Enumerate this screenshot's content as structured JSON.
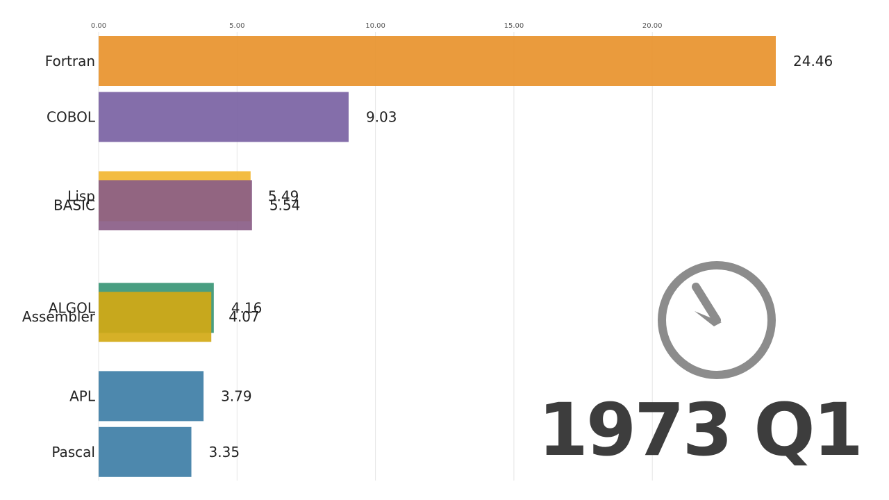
{
  "chart_data": {
    "type": "bar",
    "orientation": "horizontal",
    "period": "1973 Q1",
    "categories": [
      "Fortran",
      "COBOL",
      "Lisp",
      "BASIC",
      "ALGOL",
      "Assembler",
      "APL",
      "Pascal"
    ],
    "values": [
      24.46,
      9.03,
      5.49,
      5.54,
      4.16,
      4.07,
      3.79,
      3.35
    ],
    "value_labels": [
      "24.46",
      "9.03",
      "5.49",
      "5.54",
      "4.16",
      "4.07",
      "3.79",
      "3.35"
    ],
    "rank_positions": [
      0,
      1,
      2.42,
      2.58,
      4.42,
      4.58,
      6,
      7
    ],
    "colors": [
      "#e8922d",
      "#7962a3",
      "#f2b632",
      "#8a5d87",
      "#3a9676",
      "#d2a915",
      "#3e7ea6",
      "#3e7ea6"
    ],
    "xticks": [
      "0.00",
      "5.00",
      "10.00",
      "15.00",
      "20.00"
    ],
    "xtick_values": [
      0,
      5,
      10,
      15,
      20
    ],
    "xlim": [
      0,
      24.46
    ],
    "grid": true,
    "xlabel": "",
    "ylabel": "",
    "title": "",
    "icon": "clock-icon"
  }
}
